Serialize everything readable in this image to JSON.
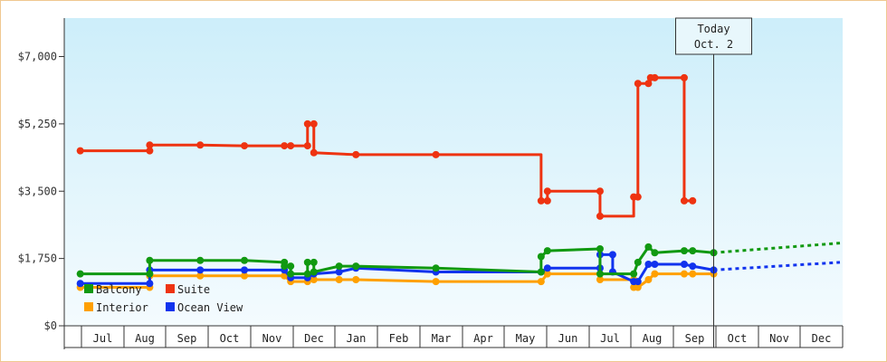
{
  "chart_data": {
    "type": "line",
    "ylim": [
      0,
      8000
    ],
    "y_ticks": [
      {
        "value": 0,
        "label": "$0"
      },
      {
        "value": 1750,
        "label": "$1,750"
      },
      {
        "value": 3500,
        "label": "$3,500"
      },
      {
        "value": 5250,
        "label": "$5,250"
      },
      {
        "value": 7000,
        "label": "$7,000"
      }
    ],
    "months": [
      "Jul",
      "Aug",
      "Sep",
      "Oct",
      "Nov",
      "Dec",
      "Jan",
      "Feb",
      "Mar",
      "Apr",
      "May",
      "Jun",
      "Jul",
      "Aug",
      "Sep",
      "Oct",
      "Nov",
      "Dec"
    ],
    "x_range": [
      0,
      18
    ],
    "today": {
      "label1": "Today",
      "label2": "Oct. 2",
      "x": 15.0
    },
    "legend": [
      {
        "name": "Balcony",
        "color": "#119911"
      },
      {
        "name": "Suite",
        "color": "#ee3311"
      },
      {
        "name": "Interior",
        "color": "#ffa000"
      },
      {
        "name": "Ocean View",
        "color": "#1133ee"
      }
    ],
    "series": [
      {
        "name": "Suite",
        "color": "#ee3311",
        "points": [
          [
            -0.05,
            4550
          ],
          [
            1.6,
            4550
          ],
          [
            1.6,
            4700
          ],
          [
            2.8,
            4700
          ],
          [
            3.85,
            4680
          ],
          [
            4.8,
            4680
          ],
          [
            4.95,
            4680
          ],
          [
            5.35,
            4680
          ],
          [
            5.35,
            5250
          ],
          [
            5.5,
            5250
          ],
          [
            5.5,
            4500
          ],
          [
            6.5,
            4450
          ],
          [
            8.4,
            4450
          ],
          [
            10.9,
            4450
          ],
          [
            10.9,
            3250
          ],
          [
            11.05,
            3250
          ],
          [
            11.05,
            3500
          ],
          [
            12.3,
            3500
          ],
          [
            12.3,
            2850
          ],
          [
            13.1,
            2850
          ],
          [
            13.1,
            3350
          ],
          [
            13.2,
            3350
          ],
          [
            13.2,
            6300
          ],
          [
            13.45,
            6300
          ],
          [
            13.5,
            6450
          ],
          [
            13.6,
            6450
          ],
          [
            14.3,
            6450
          ],
          [
            14.3,
            3250
          ],
          [
            14.5,
            3250
          ]
        ],
        "markers": [
          [
            -0.05,
            4550
          ],
          [
            1.6,
            4550
          ],
          [
            1.6,
            4700
          ],
          [
            2.8,
            4700
          ],
          [
            3.85,
            4680
          ],
          [
            4.8,
            4680
          ],
          [
            4.95,
            4680
          ],
          [
            5.35,
            4680
          ],
          [
            5.35,
            5250
          ],
          [
            5.5,
            5250
          ],
          [
            5.5,
            4500
          ],
          [
            6.5,
            4450
          ],
          [
            8.4,
            4450
          ],
          [
            10.9,
            3250
          ],
          [
            11.05,
            3250
          ],
          [
            11.05,
            3500
          ],
          [
            12.3,
            3500
          ],
          [
            12.3,
            2850
          ],
          [
            13.1,
            3350
          ],
          [
            13.2,
            3350
          ],
          [
            13.2,
            6300
          ],
          [
            13.45,
            6300
          ],
          [
            13.5,
            6450
          ],
          [
            13.6,
            6450
          ],
          [
            14.3,
            6450
          ],
          [
            14.3,
            3250
          ],
          [
            14.5,
            3250
          ]
        ]
      },
      {
        "name": "Interior",
        "color": "#ffa000",
        "points": [
          [
            -0.05,
            1000
          ],
          [
            1.6,
            1000
          ],
          [
            1.6,
            1300
          ],
          [
            2.8,
            1300
          ],
          [
            3.85,
            1300
          ],
          [
            4.8,
            1300
          ],
          [
            4.95,
            1150
          ],
          [
            5.35,
            1150
          ],
          [
            5.5,
            1200
          ],
          [
            6.5,
            1200
          ],
          [
            8.4,
            1150
          ],
          [
            10.9,
            1150
          ],
          [
            11.05,
            1350
          ],
          [
            12.3,
            1350
          ],
          [
            12.3,
            1200
          ],
          [
            13.1,
            1200
          ],
          [
            13.1,
            1000
          ],
          [
            13.2,
            1000
          ],
          [
            13.45,
            1200
          ],
          [
            13.6,
            1350
          ],
          [
            14.3,
            1350
          ],
          [
            14.5,
            1350
          ],
          [
            15.0,
            1350
          ]
        ],
        "markers": [
          [
            -0.05,
            1000
          ],
          [
            1.6,
            1000
          ],
          [
            1.6,
            1300
          ],
          [
            2.8,
            1300
          ],
          [
            3.85,
            1300
          ],
          [
            4.8,
            1300
          ],
          [
            4.95,
            1150
          ],
          [
            5.35,
            1150
          ],
          [
            5.5,
            1200
          ],
          [
            6.1,
            1200
          ],
          [
            6.5,
            1200
          ],
          [
            8.4,
            1150
          ],
          [
            10.9,
            1150
          ],
          [
            11.05,
            1350
          ],
          [
            12.3,
            1350
          ],
          [
            12.3,
            1200
          ],
          [
            13.1,
            1200
          ],
          [
            13.1,
            1000
          ],
          [
            13.2,
            1000
          ],
          [
            13.45,
            1200
          ],
          [
            13.6,
            1350
          ],
          [
            14.3,
            1350
          ],
          [
            14.5,
            1350
          ],
          [
            15.0,
            1350
          ]
        ]
      },
      {
        "name": "Ocean View",
        "color": "#1133ee",
        "points": [
          [
            -0.05,
            1100
          ],
          [
            1.6,
            1100
          ],
          [
            1.6,
            1450
          ],
          [
            2.8,
            1450
          ],
          [
            3.85,
            1450
          ],
          [
            4.8,
            1450
          ],
          [
            4.95,
            1250
          ],
          [
            5.35,
            1250
          ],
          [
            5.5,
            1350
          ],
          [
            6.1,
            1400
          ],
          [
            6.5,
            1500
          ],
          [
            8.4,
            1400
          ],
          [
            10.9,
            1400
          ],
          [
            11.05,
            1500
          ],
          [
            12.3,
            1500
          ],
          [
            12.3,
            1850
          ],
          [
            12.45,
            1850
          ],
          [
            12.6,
            1850
          ],
          [
            12.6,
            1400
          ],
          [
            13.1,
            1150
          ],
          [
            13.2,
            1150
          ],
          [
            13.45,
            1600
          ],
          [
            13.6,
            1600
          ],
          [
            14.3,
            1600
          ],
          [
            14.5,
            1550
          ],
          [
            15.0,
            1450
          ]
        ],
        "markers": [
          [
            -0.05,
            1100
          ],
          [
            1.6,
            1100
          ],
          [
            1.6,
            1450
          ],
          [
            2.8,
            1450
          ],
          [
            3.85,
            1450
          ],
          [
            4.8,
            1450
          ],
          [
            4.95,
            1250
          ],
          [
            5.35,
            1250
          ],
          [
            5.5,
            1350
          ],
          [
            6.1,
            1400
          ],
          [
            6.5,
            1500
          ],
          [
            8.4,
            1400
          ],
          [
            10.9,
            1400
          ],
          [
            11.05,
            1500
          ],
          [
            12.3,
            1500
          ],
          [
            12.3,
            1850
          ],
          [
            12.6,
            1850
          ],
          [
            12.6,
            1400
          ],
          [
            13.1,
            1150
          ],
          [
            13.2,
            1150
          ],
          [
            13.45,
            1600
          ],
          [
            13.6,
            1600
          ],
          [
            14.3,
            1600
          ],
          [
            14.5,
            1550
          ],
          [
            15.0,
            1450
          ]
        ]
      },
      {
        "name": "Balcony",
        "color": "#119911",
        "points": [
          [
            -0.05,
            1350
          ],
          [
            1.6,
            1350
          ],
          [
            1.6,
            1700
          ],
          [
            2.8,
            1700
          ],
          [
            3.85,
            1700
          ],
          [
            4.8,
            1650
          ],
          [
            4.8,
            1550
          ],
          [
            4.95,
            1550
          ],
          [
            4.95,
            1350
          ],
          [
            5.35,
            1350
          ],
          [
            5.35,
            1650
          ],
          [
            5.5,
            1650
          ],
          [
            5.5,
            1400
          ],
          [
            6.1,
            1550
          ],
          [
            6.5,
            1550
          ],
          [
            8.4,
            1500
          ],
          [
            10.9,
            1400
          ],
          [
            10.9,
            1800
          ],
          [
            11.05,
            1950
          ],
          [
            12.3,
            2000
          ],
          [
            12.3,
            1350
          ],
          [
            13.1,
            1350
          ],
          [
            13.2,
            1650
          ],
          [
            13.45,
            2050
          ],
          [
            13.6,
            1900
          ],
          [
            14.3,
            1950
          ],
          [
            14.5,
            1950
          ],
          [
            15.0,
            1900
          ]
        ],
        "markers": [
          [
            -0.05,
            1350
          ],
          [
            1.6,
            1350
          ],
          [
            1.6,
            1700
          ],
          [
            2.8,
            1700
          ],
          [
            3.85,
            1700
          ],
          [
            4.8,
            1650
          ],
          [
            4.8,
            1550
          ],
          [
            4.95,
            1550
          ],
          [
            4.95,
            1350
          ],
          [
            5.35,
            1350
          ],
          [
            5.35,
            1650
          ],
          [
            5.5,
            1650
          ],
          [
            5.5,
            1400
          ],
          [
            6.1,
            1550
          ],
          [
            6.5,
            1550
          ],
          [
            8.4,
            1500
          ],
          [
            10.9,
            1400
          ],
          [
            10.9,
            1800
          ],
          [
            11.05,
            1950
          ],
          [
            12.3,
            2000
          ],
          [
            12.3,
            1350
          ],
          [
            13.1,
            1350
          ],
          [
            13.2,
            1650
          ],
          [
            13.45,
            2050
          ],
          [
            13.6,
            1900
          ],
          [
            14.3,
            1950
          ],
          [
            14.5,
            1950
          ],
          [
            15.0,
            1900
          ]
        ]
      }
    ],
    "projections": [
      {
        "name": "Balcony",
        "color": "#119911",
        "points": [
          [
            15.0,
            1900
          ],
          [
            18.0,
            2150
          ]
        ]
      },
      {
        "name": "Ocean View",
        "color": "#1133ee",
        "points": [
          [
            15.0,
            1450
          ],
          [
            18.0,
            1650
          ]
        ]
      }
    ]
  }
}
